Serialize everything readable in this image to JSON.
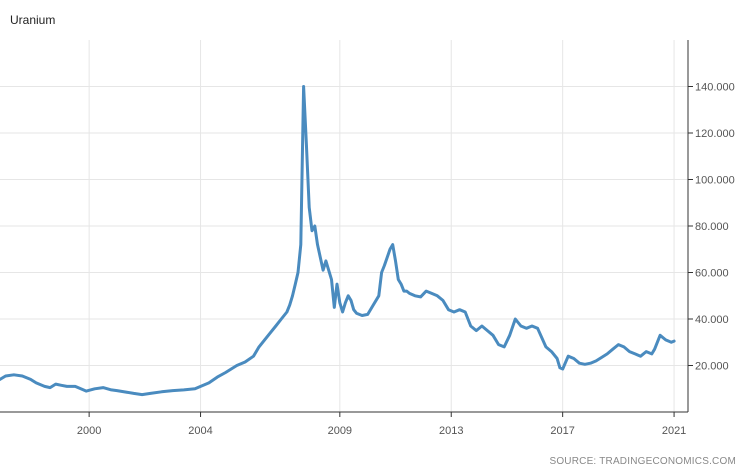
{
  "chart_data": {
    "type": "line",
    "title": "Uranium",
    "source": "SOURCE: TRADINGECONOMICS.COM",
    "xlabel": "",
    "ylabel": "",
    "xlim": [
      1996.8,
      2021.5
    ],
    "ylim": [
      0,
      160
    ],
    "x_ticks": [
      2000,
      2004,
      2009,
      2013,
      2017,
      2021
    ],
    "x_tick_labels": [
      "2000",
      "2004",
      "2009",
      "2013",
      "2017",
      "2021"
    ],
    "y_ticks": [
      20,
      40,
      60,
      80,
      100,
      120,
      140
    ],
    "y_tick_labels": [
      "20.000",
      "40.000",
      "60.000",
      "80.000",
      "100.000",
      "120.000",
      "140.000"
    ],
    "grid": true,
    "colors": {
      "line": "#4a8bbf",
      "grid": "#e6e6e6",
      "axis": "#333333"
    },
    "series": [
      {
        "x": [
          1996.8,
          1997.0,
          1997.3,
          1997.6,
          1997.9,
          1998.1,
          1998.4,
          1998.6,
          1998.8,
          1999.0,
          1999.2,
          1999.5,
          1999.7,
          1999.9,
          2000.2,
          2000.5,
          2000.8,
          2001.0,
          2001.3,
          2001.6,
          2001.9,
          2002.2,
          2002.6,
          2003.0,
          2003.4,
          2003.8,
          2004.0,
          2004.3,
          2004.6,
          2004.9,
          2005.1,
          2005.3,
          2005.6,
          2005.9,
          2006.1,
          2006.3,
          2006.5,
          2006.7,
          2006.9,
          2007.1,
          2007.2,
          2007.3,
          2007.4,
          2007.5,
          2007.6,
          2007.7,
          2007.8,
          2007.9,
          2008.0,
          2008.1,
          2008.2,
          2008.4,
          2008.5,
          2008.7,
          2008.8,
          2008.9,
          2009.0,
          2009.1,
          2009.2,
          2009.3,
          2009.4,
          2009.5,
          2009.6,
          2009.7,
          2009.8,
          2010.0,
          2010.2,
          2010.4,
          2010.5,
          2010.6,
          2010.8,
          2010.9,
          2011.0,
          2011.1,
          2011.2,
          2011.3,
          2011.4,
          2011.5,
          2011.7,
          2011.9,
          2012.1,
          2012.3,
          2012.5,
          2012.7,
          2012.9,
          2013.1,
          2013.3,
          2013.5,
          2013.7,
          2013.9,
          2014.1,
          2014.3,
          2014.5,
          2014.7,
          2014.9,
          2015.1,
          2015.3,
          2015.5,
          2015.7,
          2015.9,
          2016.1,
          2016.4,
          2016.6,
          2016.8,
          2016.9,
          2017.0,
          2017.2,
          2017.4,
          2017.6,
          2017.8,
          2018.0,
          2018.2,
          2018.4,
          2018.6,
          2018.8,
          2019.0,
          2019.2,
          2019.4,
          2019.6,
          2019.8,
          2020.0,
          2020.2,
          2020.3,
          2020.5,
          2020.7,
          2020.9,
          2021.0
        ],
        "y": [
          14,
          15.5,
          16,
          15.5,
          14,
          12.5,
          11,
          10.5,
          12,
          11.5,
          11,
          11,
          10,
          9,
          10,
          10.5,
          9.5,
          9.2,
          8.6,
          8,
          7.5,
          8,
          8.7,
          9.2,
          9.5,
          10,
          11,
          12.5,
          15,
          17,
          18.5,
          20,
          21.5,
          24,
          28,
          31,
          34,
          37,
          40,
          43,
          46,
          50,
          55,
          60,
          72,
          140,
          115,
          88,
          78,
          80,
          72,
          61,
          65,
          57,
          45,
          55,
          47,
          43,
          47,
          50,
          48,
          44,
          42.5,
          42,
          41.5,
          42,
          46,
          50,
          60,
          63,
          70,
          72,
          65,
          57,
          55,
          52,
          52,
          51,
          50,
          49.5,
          52,
          51,
          50,
          48,
          44,
          43,
          44,
          43,
          37,
          35,
          37,
          35,
          33,
          29,
          28,
          33,
          40,
          37,
          36,
          37,
          36,
          28,
          26,
          23,
          19,
          18.5,
          24,
          23,
          21,
          20.5,
          21,
          22,
          23.5,
          25,
          27,
          29,
          28,
          26,
          25,
          24,
          26,
          25,
          27,
          33,
          31,
          30,
          30.5
        ]
      }
    ]
  }
}
